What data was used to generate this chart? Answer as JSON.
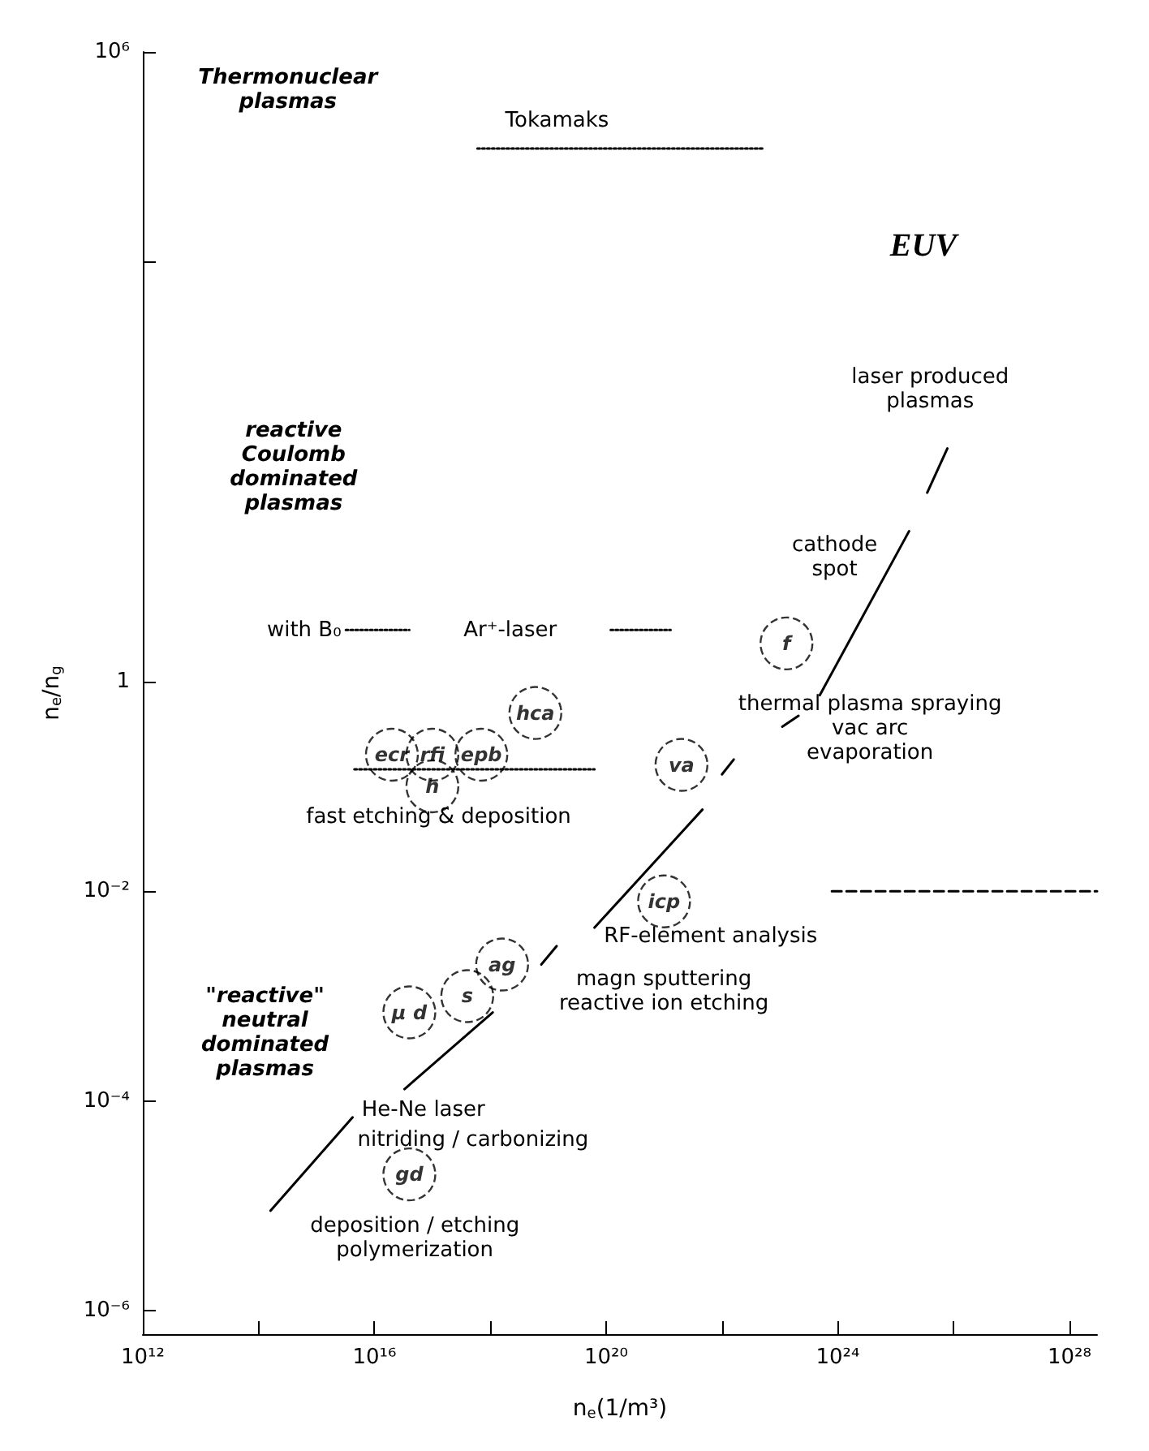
{
  "chart_data": {
    "type": "scatter",
    "xlabel": "n$_{e}$(1/m³)",
    "ylabel": "n$_{e}$/n$_{g}$",
    "xlim": [
      1000000000000.0,
      3e+28
    ],
    "ylim": [
      6e-07,
      1000000.0
    ],
    "xticks": [
      {
        "value": 1000000000000.0,
        "label": "10¹²"
      },
      {
        "value": 100000000000000.0,
        "label": null
      },
      {
        "value": 1e+16,
        "label": "10¹⁶"
      },
      {
        "value": 1e+18,
        "label": null
      },
      {
        "value": 1e+20,
        "label": "10²⁰"
      },
      {
        "value": 1e+22,
        "label": null
      },
      {
        "value": 1e+24,
        "label": "10²⁴"
      },
      {
        "value": 1e+26,
        "label": null
      },
      {
        "value": 1e+28,
        "label": "10²⁸"
      }
    ],
    "yticks": [
      {
        "value": 1e-06,
        "label": "10⁻⁶"
      },
      {
        "value": 0.0001,
        "label": "10⁻⁴"
      },
      {
        "value": 0.01,
        "label": "10⁻²"
      },
      1,
      {
        "value": 10000.0,
        "label": null
      },
      {
        "value": 1000000.0,
        "label": "10⁶"
      }
    ],
    "grid": false,
    "log": "xy",
    "series": [
      {
        "type": "scatter",
        "marker": "circle",
        "color": "#000000",
        "x": [
          1.3e+23,
          6e+18,
          2e+16,
          1e+17,
          7e+17,
          1e+17,
          2e+21,
          1e+21,
          1.6e+18,
          4e+17,
          4e+16,
          4e+16
        ],
        "values": [
          2.3,
          0.5,
          0.2,
          0.2,
          0.2,
          0.1,
          0.16,
          0.008,
          0.002,
          0.001,
          0.0007,
          2e-05
        ],
        "value_labels": [
          "f",
          "hca",
          "ecr",
          "rfi",
          "epb",
          "h",
          "va",
          "icp",
          "ag",
          "s",
          "µ d",
          "gd"
        ]
      },
      {
        "type": "line",
        "color": "#000000",
        "line_style": "solid",
        "x": [
          160000000000000.0,
          4200000000000000.0
        ],
        "values": [
          9e-06,
          7e-05
        ]
      },
      {
        "type": "line",
        "color": "#000000",
        "line_style": "solid",
        "x": [
          3.3e+16,
          1.1e+18
        ],
        "values": [
          0.00013,
          0.0007
        ]
      },
      {
        "type": "line",
        "color": "#000000",
        "line_style": "solid",
        "x": [
          7.6e+18,
          1.4e+19
        ],
        "values": [
          0.002,
          0.003
        ]
      },
      {
        "type": "line",
        "color": "#000000",
        "line_style": "solid",
        "x": [
          6.3e+19,
          4.6e+21
        ],
        "values": [
          0.0045,
          0.06
        ]
      },
      {
        "type": "line",
        "color": "#000000",
        "line_style": "solid",
        "x": [
          1e+22,
          1.6e+22
        ],
        "values": [
          0.13,
          0.18
        ]
      },
      {
        "type": "line",
        "color": "#000000",
        "line_style": "solid",
        "x": [
          1.1e+23,
          2.1e+23
        ],
        "values": [
          0.37,
          0.47
        ]
      },
      {
        "type": "line",
        "color": "#000000",
        "line_style": "solid",
        "x": [
          4.9e+23,
          1.7e+25
        ],
        "values": [
          0.74,
          27
        ]
      },
      {
        "type": "line",
        "color": "#000000",
        "line_style": "solid",
        "x": [
          3.5e+25,
          7.8e+25
        ],
        "values": [
          63,
          166
        ]
      },
      {
        "type": "line",
        "color": "#000000",
        "line_style": "dotted",
        "x": [
          6e+17,
          5e+22
        ],
        "values": [
          120000,
          120000
        ]
      },
      {
        "type": "line",
        "color": "#000000",
        "line_style": "dotted",
        "x": [
          3200000000000000.0,
          4e+16
        ],
        "values": [
          3.1,
          3.1
        ]
      },
      {
        "type": "line",
        "color": "#000000",
        "line_style": "dotted",
        "x": [
          1.2e+20,
          1.3e+21
        ],
        "values": [
          3.1,
          3.1
        ]
      },
      {
        "type": "line",
        "color": "#000000",
        "line_style": "dotted",
        "x": [
          4500000000000000.0,
          6.3e+19
        ],
        "values": [
          0.145,
          0.145
        ]
      },
      {
        "type": "line",
        "color": "#000000",
        "line_style": "dashed",
        "x": [
          7.9e+23,
          3e+28
        ],
        "values": [
          0.01,
          0.01
        ]
      }
    ],
    "annotations": [
      "Thermonuclear\nplasmas",
      "Tokamaks",
      "EUV",
      "reactive\nCoulomb\ndominated\nplasmas",
      "laser produced\nplasmas",
      "cathode\nspot",
      "with B₀",
      "Ar⁺-laser",
      "thermal plasma spraying\nvac arc\nevaporation",
      "fast etching & deposition",
      "RF-element analysis",
      "magn sputtering\nreactive ion etching",
      "\"reactive\"\nneutral\ndominated\nplasmas",
      "He-Ne laser",
      "nitriding / carbonizing",
      "deposition / etching\npolymerization"
    ]
  }
}
